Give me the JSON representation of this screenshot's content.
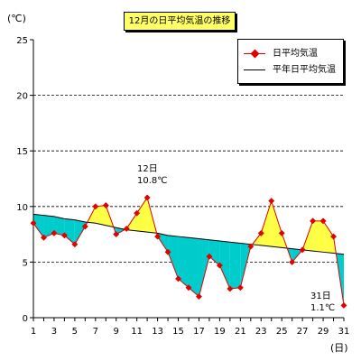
{
  "title": "12月の日平均気温の推移",
  "y_unit": "(℃)",
  "x_unit": "(日)",
  "legend": {
    "daily_label": "日平均気温",
    "normal_label": "平年日平均気温"
  },
  "annotations": {
    "max_day": "12日",
    "max_value": "10.8℃",
    "last_day": "31日",
    "last_value": "1.1℃"
  },
  "chart_data": {
    "type": "line",
    "title": "12月の日平均気温の推移",
    "xlabel": "(日)",
    "ylabel": "(℃)",
    "x": [
      1,
      2,
      3,
      4,
      5,
      6,
      7,
      8,
      9,
      10,
      11,
      12,
      13,
      14,
      15,
      16,
      17,
      18,
      19,
      20,
      21,
      22,
      23,
      24,
      25,
      26,
      27,
      28,
      29,
      30,
      31
    ],
    "xticks": [
      1,
      3,
      5,
      7,
      9,
      11,
      13,
      15,
      17,
      19,
      21,
      23,
      25,
      27,
      29,
      31
    ],
    "ylim": [
      0,
      25
    ],
    "yticks": [
      0,
      5,
      10,
      15,
      20,
      25
    ],
    "grid": "horizontal dashed",
    "legend_position": "top-right",
    "colors": {
      "daily": "#e00000",
      "normal": "#000000",
      "above": "#ffff44",
      "below": "#00cccc"
    },
    "series": [
      {
        "name": "日平均気温",
        "values": [
          8.5,
          7.2,
          7.6,
          7.4,
          6.6,
          8.2,
          10.0,
          10.1,
          7.5,
          8.0,
          9.4,
          10.8,
          7.3,
          5.9,
          3.5,
          2.7,
          1.9,
          5.5,
          4.7,
          2.6,
          2.7,
          6.4,
          7.6,
          10.5,
          7.6,
          5.0,
          6.1,
          8.7,
          8.7,
          7.3,
          1.1
        ]
      },
      {
        "name": "平年日平均気温",
        "values": [
          9.3,
          9.2,
          9.1,
          8.9,
          8.8,
          8.6,
          8.5,
          8.3,
          8.1,
          7.9,
          7.8,
          7.7,
          7.6,
          7.4,
          7.3,
          7.2,
          7.1,
          7.0,
          6.9,
          6.8,
          6.7,
          6.6,
          6.5,
          6.4,
          6.3,
          6.2,
          6.1,
          6.0,
          5.9,
          5.8,
          5.7
        ]
      }
    ]
  }
}
